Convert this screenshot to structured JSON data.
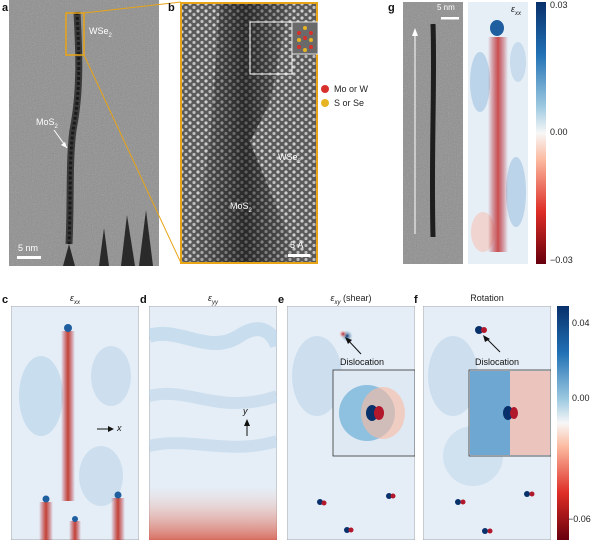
{
  "panels": {
    "a": {
      "label": "a",
      "wse2": "WSe",
      "mos2": "MoS",
      "sub": "2",
      "scale": "5 nm"
    },
    "b": {
      "label": "b",
      "wse2": "WSe",
      "mos2": "MoS",
      "sub": "2",
      "scale": "5 Å",
      "legend": [
        {
          "text": "Mo or W",
          "color": "#d8302a"
        },
        {
          "text": "S or Se",
          "color": "#e6b422"
        }
      ]
    },
    "g": {
      "label": "g",
      "scale": "5 nm",
      "map_title": "ε",
      "colorbar": {
        "ticks": [
          "0.03",
          "0.00",
          "−0.03"
        ]
      }
    },
    "c": {
      "label": "c",
      "title": "ε",
      "axis": "x"
    },
    "d": {
      "label": "d",
      "title": "ε",
      "axis": "y"
    },
    "e": {
      "label": "e",
      "title": "ε",
      "title_suffix": " (shear)",
      "annotation": "Dislocation"
    },
    "f": {
      "label": "f",
      "title": "Rotation",
      "annotation": "Dislocation"
    }
  },
  "subscripts": {
    "g": "xx",
    "c": "xx",
    "d": "yy",
    "e": "xy"
  },
  "bottom_colorbar": {
    "ticks": [
      "0.04",
      "0.00",
      "−0.06"
    ]
  },
  "colors": {
    "frame": "#e8a417",
    "blue": "#1f5fa0",
    "red": "#b2182b"
  }
}
